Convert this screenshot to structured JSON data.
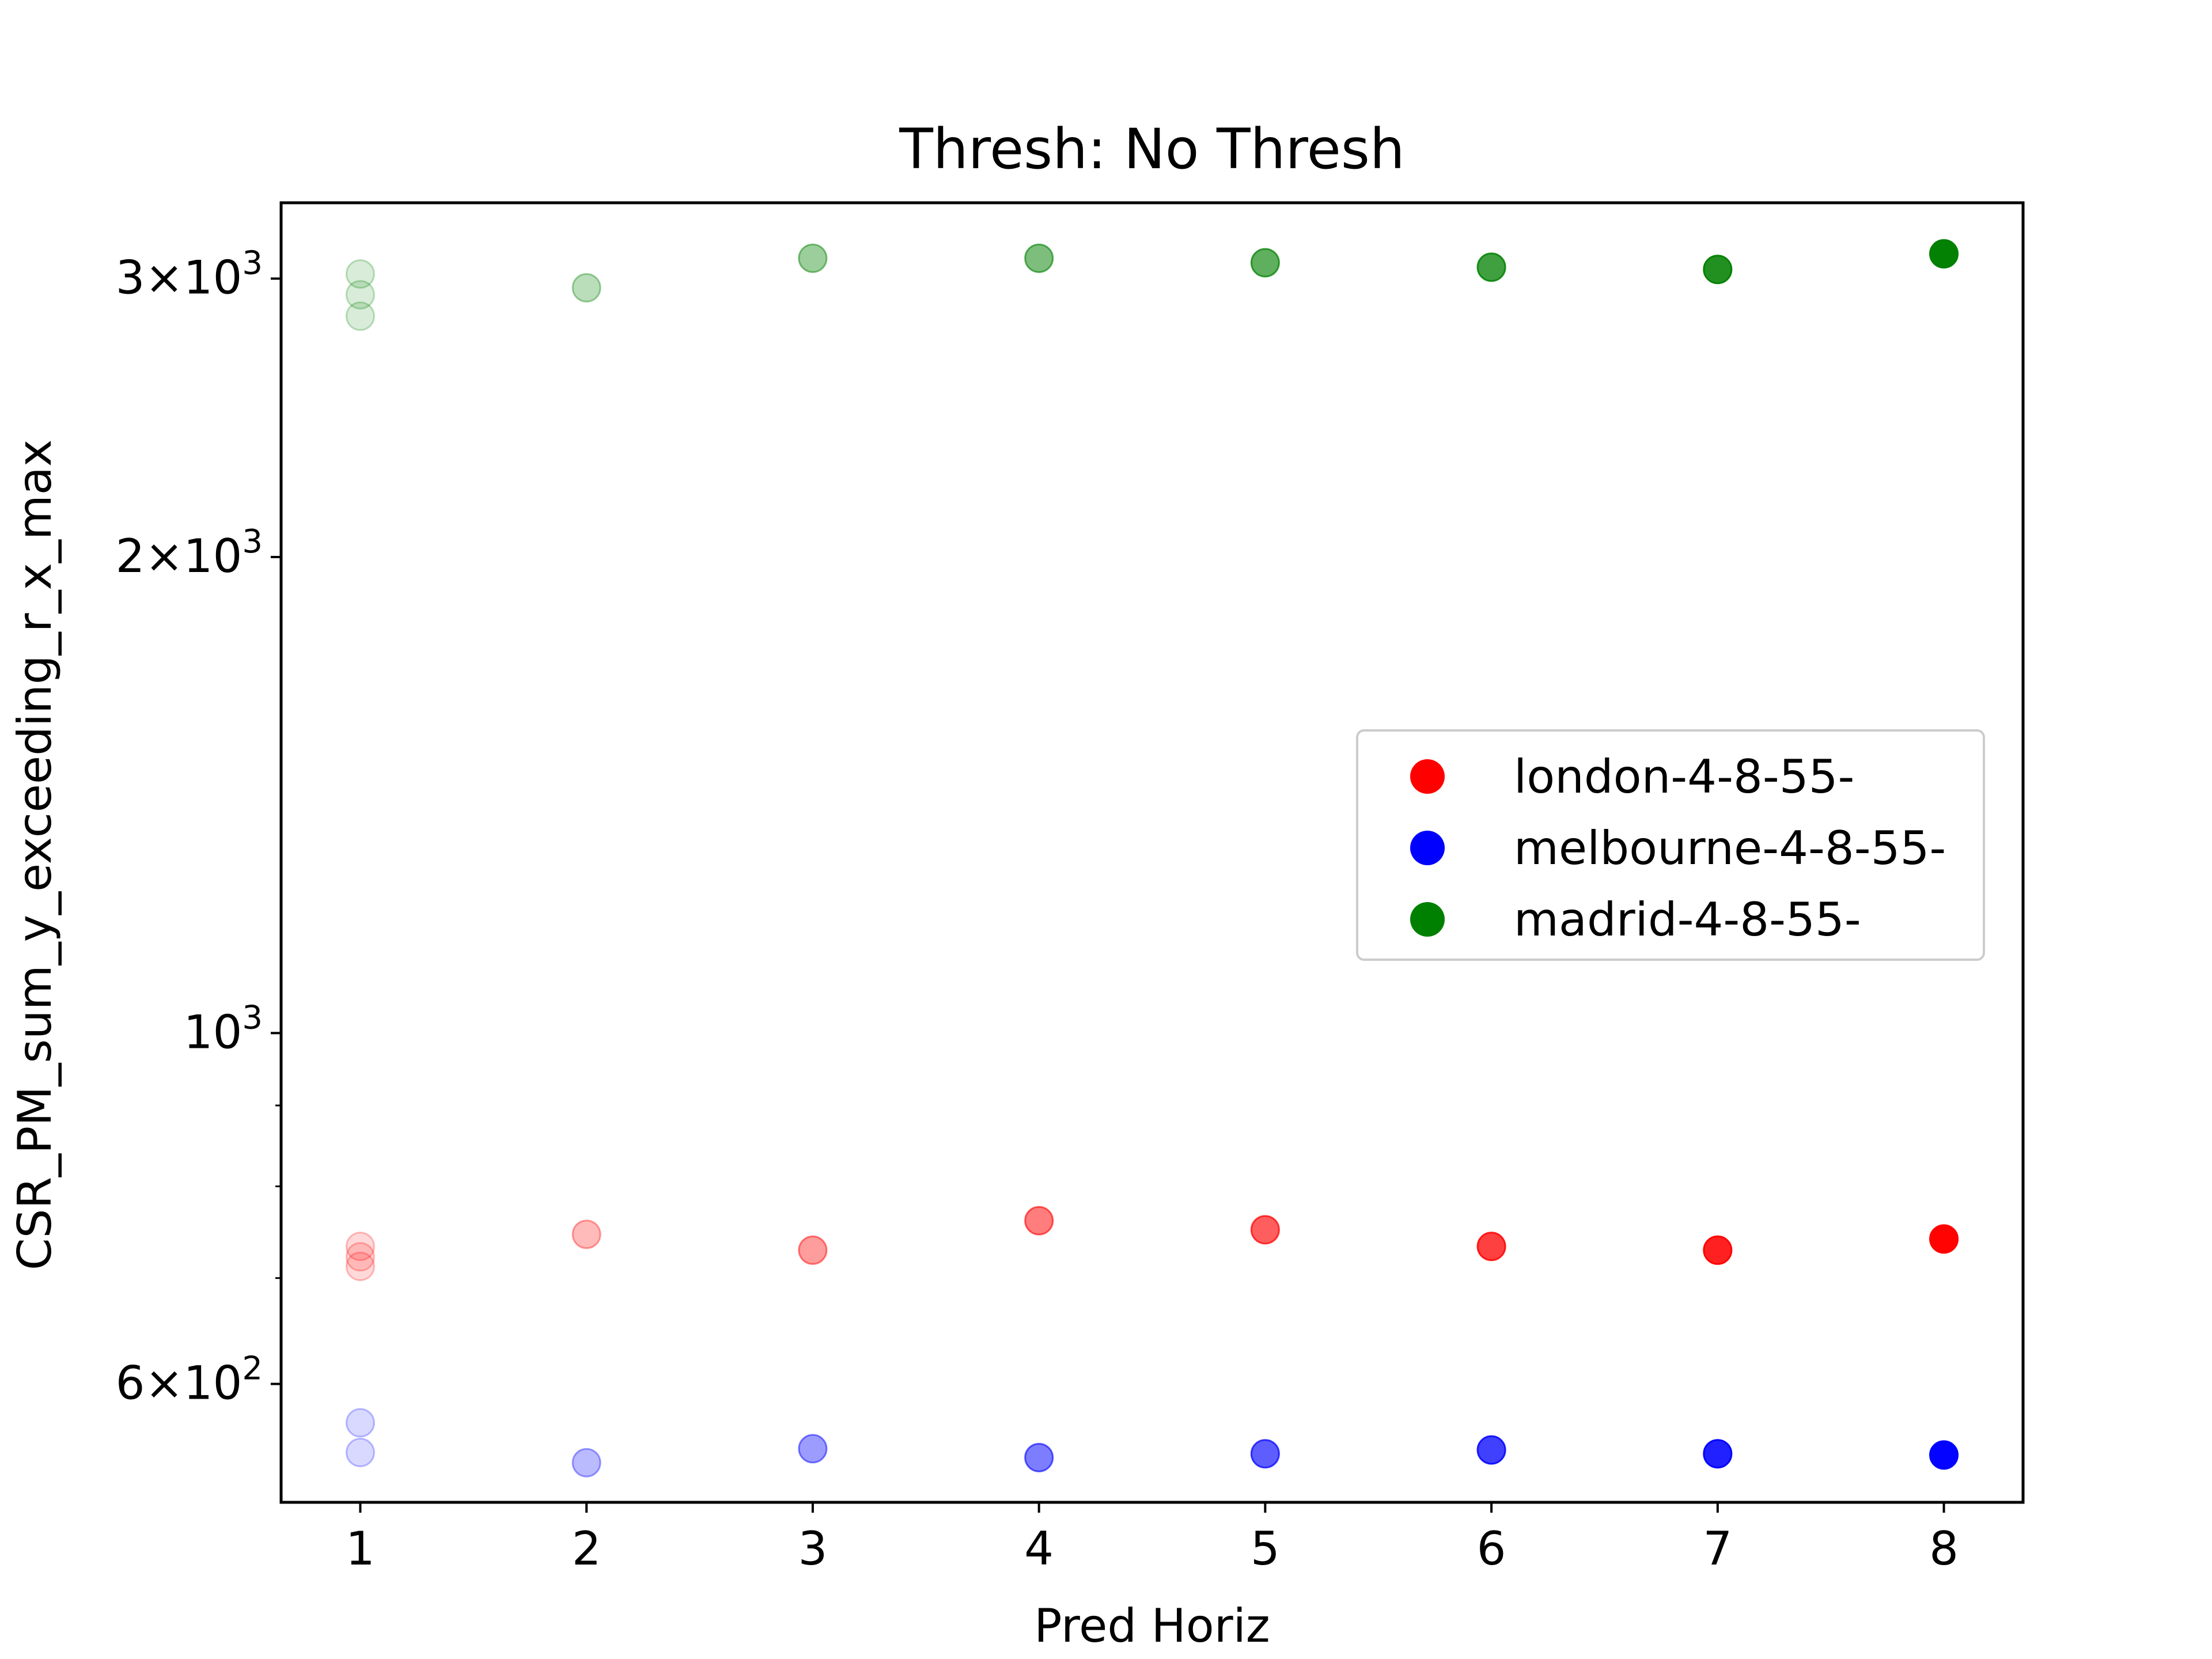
{
  "chart_data": {
    "type": "scatter",
    "title": "Thresh: No Thresh",
    "xlabel": "Pred Horiz",
    "ylabel": "CSR_PM_sum_y_exceeding_r_x_max",
    "x_ticks": [
      1,
      2,
      3,
      4,
      5,
      6,
      7,
      8
    ],
    "y_scale": "log",
    "ylim": [
      505,
      3350
    ],
    "xlim": [
      0.65,
      8.35
    ],
    "y_tick_labels": [
      {
        "value": 600,
        "mantissa": "6",
        "exponent": "2"
      },
      {
        "value": 1000,
        "mantissa": "",
        "exponent": "3"
      },
      {
        "value": 2000,
        "mantissa": "2",
        "exponent": "3"
      },
      {
        "value": 3000,
        "mantissa": "3",
        "exponent": "3"
      }
    ],
    "legend_position": "center-right",
    "series": [
      {
        "name": "london-4-8-55-",
        "color": "#ff0000",
        "points": [
          {
            "x": 1,
            "y": [
              733,
              722,
              712
            ]
          },
          {
            "x": 2,
            "y": [
              746
            ]
          },
          {
            "x": 3,
            "y": [
              729
            ]
          },
          {
            "x": 4,
            "y": [
              761
            ]
          },
          {
            "x": 5,
            "y": [
              751
            ]
          },
          {
            "x": 6,
            "y": [
              733
            ]
          },
          {
            "x": 7,
            "y": [
              729
            ]
          },
          {
            "x": 8,
            "y": [
              741
            ]
          }
        ]
      },
      {
        "name": "melbourne-4-8-55-",
        "color": "#0000ff",
        "points": [
          {
            "x": 1,
            "y": [
              567,
              543
            ]
          },
          {
            "x": 2,
            "y": [
              535
            ]
          },
          {
            "x": 3,
            "y": [
              546
            ]
          },
          {
            "x": 4,
            "y": [
              539
            ]
          },
          {
            "x": 5,
            "y": [
              542
            ]
          },
          {
            "x": 6,
            "y": [
              545
            ]
          },
          {
            "x": 7,
            "y": [
              542
            ]
          },
          {
            "x": 8,
            "y": [
              541
            ]
          }
        ]
      },
      {
        "name": "madrid-4-8-55-",
        "color": "#008000",
        "points": [
          {
            "x": 1,
            "y": [
              3020,
              2930,
              2840
            ]
          },
          {
            "x": 2,
            "y": [
              2960
            ]
          },
          {
            "x": 3,
            "y": [
              3090
            ]
          },
          {
            "x": 4,
            "y": [
              3090
            ]
          },
          {
            "x": 5,
            "y": [
              3070
            ]
          },
          {
            "x": 6,
            "y": [
              3050
            ]
          },
          {
            "x": 7,
            "y": [
              3040
            ]
          },
          {
            "x": 8,
            "y": [
              3110
            ]
          }
        ]
      }
    ]
  }
}
